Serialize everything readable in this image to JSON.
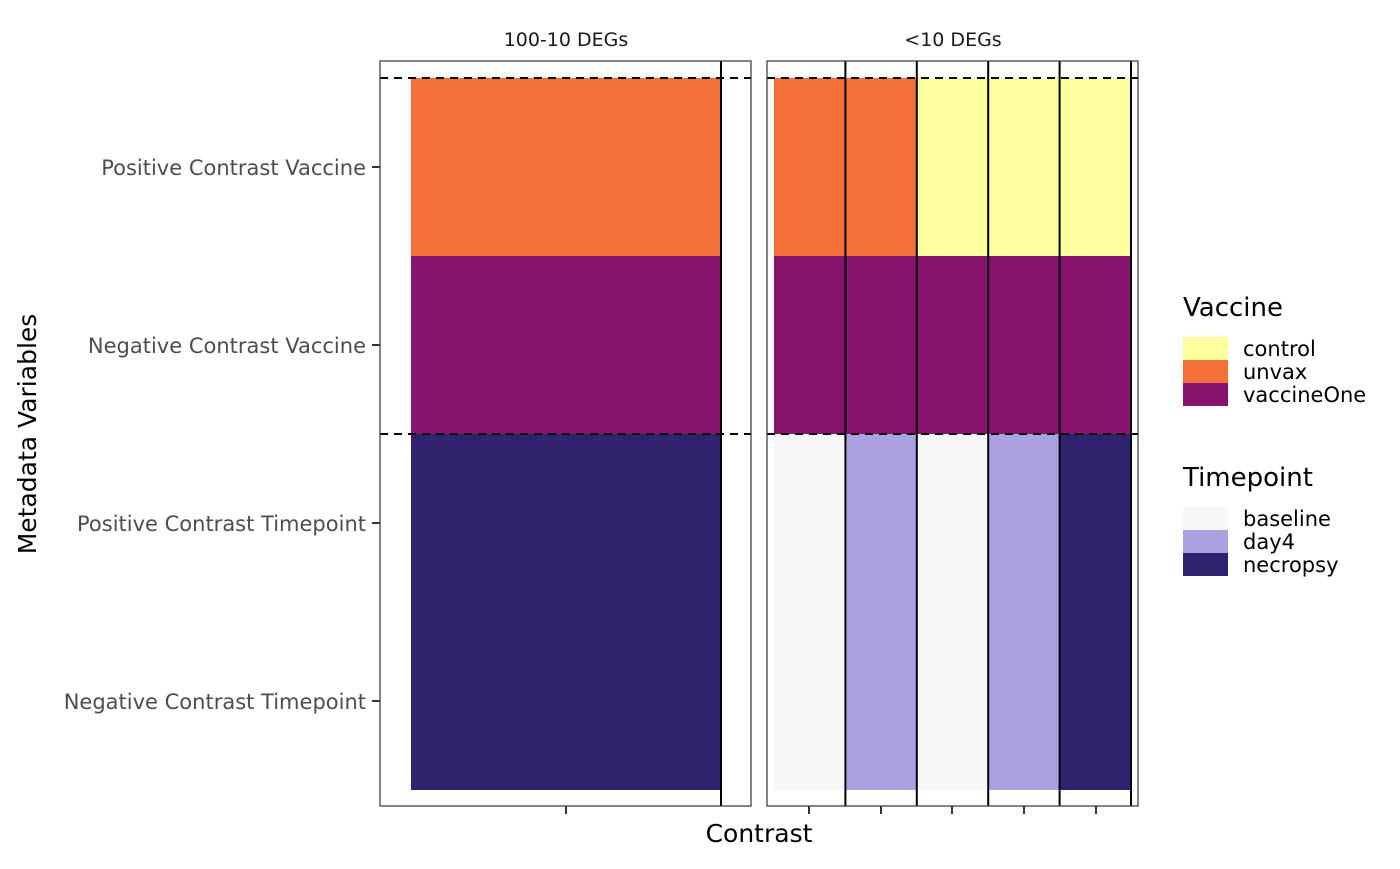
{
  "chart_data": {
    "type": "heatmap",
    "xlabel": "Contrast",
    "ylabel": "Metadata Variables",
    "y_categories": [
      "Positive Contrast Vaccine",
      "Negative Contrast Vaccine",
      "Positive Contrast Timepoint",
      "Negative Contrast Timepoint"
    ],
    "panels": [
      {
        "label": "100-10 DEGs",
        "columns": [
          [
            "unvax",
            "vaccineOne",
            "necropsy",
            "necropsy"
          ]
        ]
      },
      {
        "label": "<10 DEGs",
        "columns": [
          [
            "unvax",
            "vaccineOne",
            "baseline",
            "baseline"
          ],
          [
            "unvax",
            "vaccineOne",
            "day4",
            "day4"
          ],
          [
            "control",
            "vaccineOne",
            "baseline",
            "baseline"
          ],
          [
            "control",
            "vaccineOne",
            "day4",
            "day4"
          ],
          [
            "control",
            "vaccineOne",
            "necropsy",
            "necropsy"
          ]
        ]
      }
    ],
    "legends": [
      {
        "title": "Vaccine",
        "entries": [
          {
            "label": "control",
            "color": "#FDFE9D"
          },
          {
            "label": "unvax",
            "color": "#F27038"
          },
          {
            "label": "vaccineOne",
            "color": "#87136E"
          }
        ]
      },
      {
        "title": "Timepoint",
        "entries": [
          {
            "label": "baseline",
            "color": "#F7F7F7"
          },
          {
            "label": "day4",
            "color": "#A9A1E1"
          },
          {
            "label": "necropsy",
            "color": "#30226F"
          }
        ]
      }
    ],
    "legend_position": "right",
    "grid": false
  }
}
